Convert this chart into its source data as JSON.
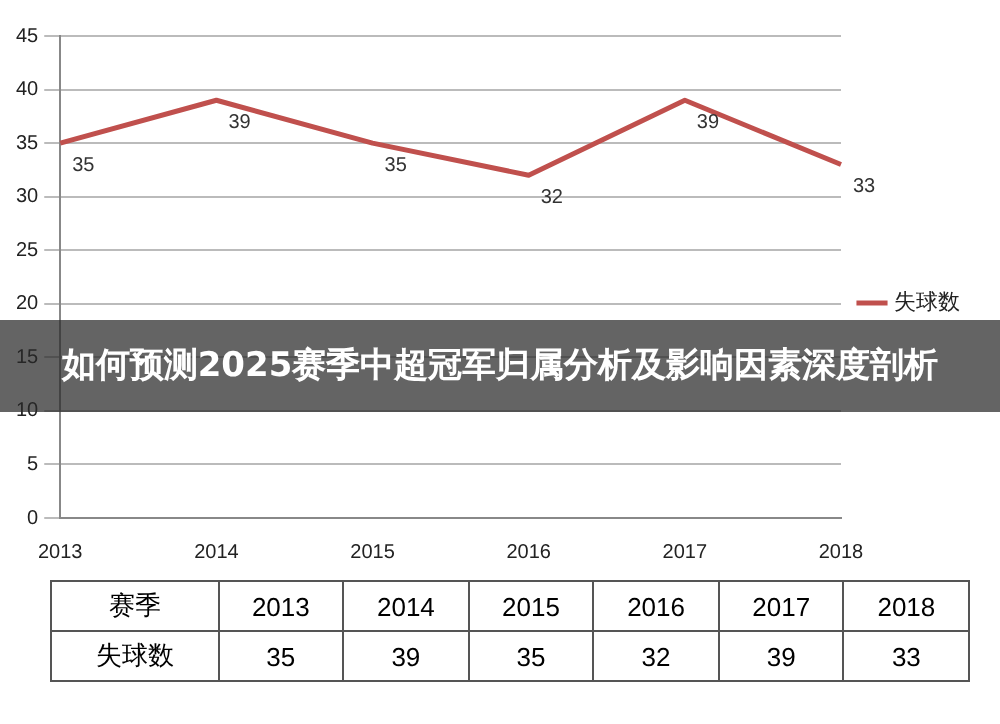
{
  "chart_data": [
    {
      "type": "line",
      "title": "如何预测2025赛季中超冠军归属分析及影响因素深度剖析",
      "categories": [
        "2013",
        "2014",
        "2015",
        "2016",
        "2017",
        "2018"
      ],
      "series": [
        {
          "name": "失球数",
          "color": "#c0504d",
          "values": [
            35,
            39,
            35,
            32,
            39,
            33
          ]
        }
      ],
      "ylim": [
        0,
        45
      ],
      "yticks": [
        0,
        5,
        10,
        15,
        20,
        25,
        30,
        35,
        40,
        45
      ],
      "grid": "y",
      "legend": "right",
      "marker": "none",
      "line_style": "solid",
      "data_labels": true
    },
    {
      "type": "heatmap",
      "xlabel": "赛季",
      "categories": [
        "2013",
        "2014",
        "2015",
        "2016",
        "2017",
        "2018"
      ],
      "y_categories": [
        "失球数"
      ],
      "cells": [
        [
          35,
          39,
          35,
          32,
          39,
          33
        ]
      ],
      "data_labels": true
    }
  ]
}
